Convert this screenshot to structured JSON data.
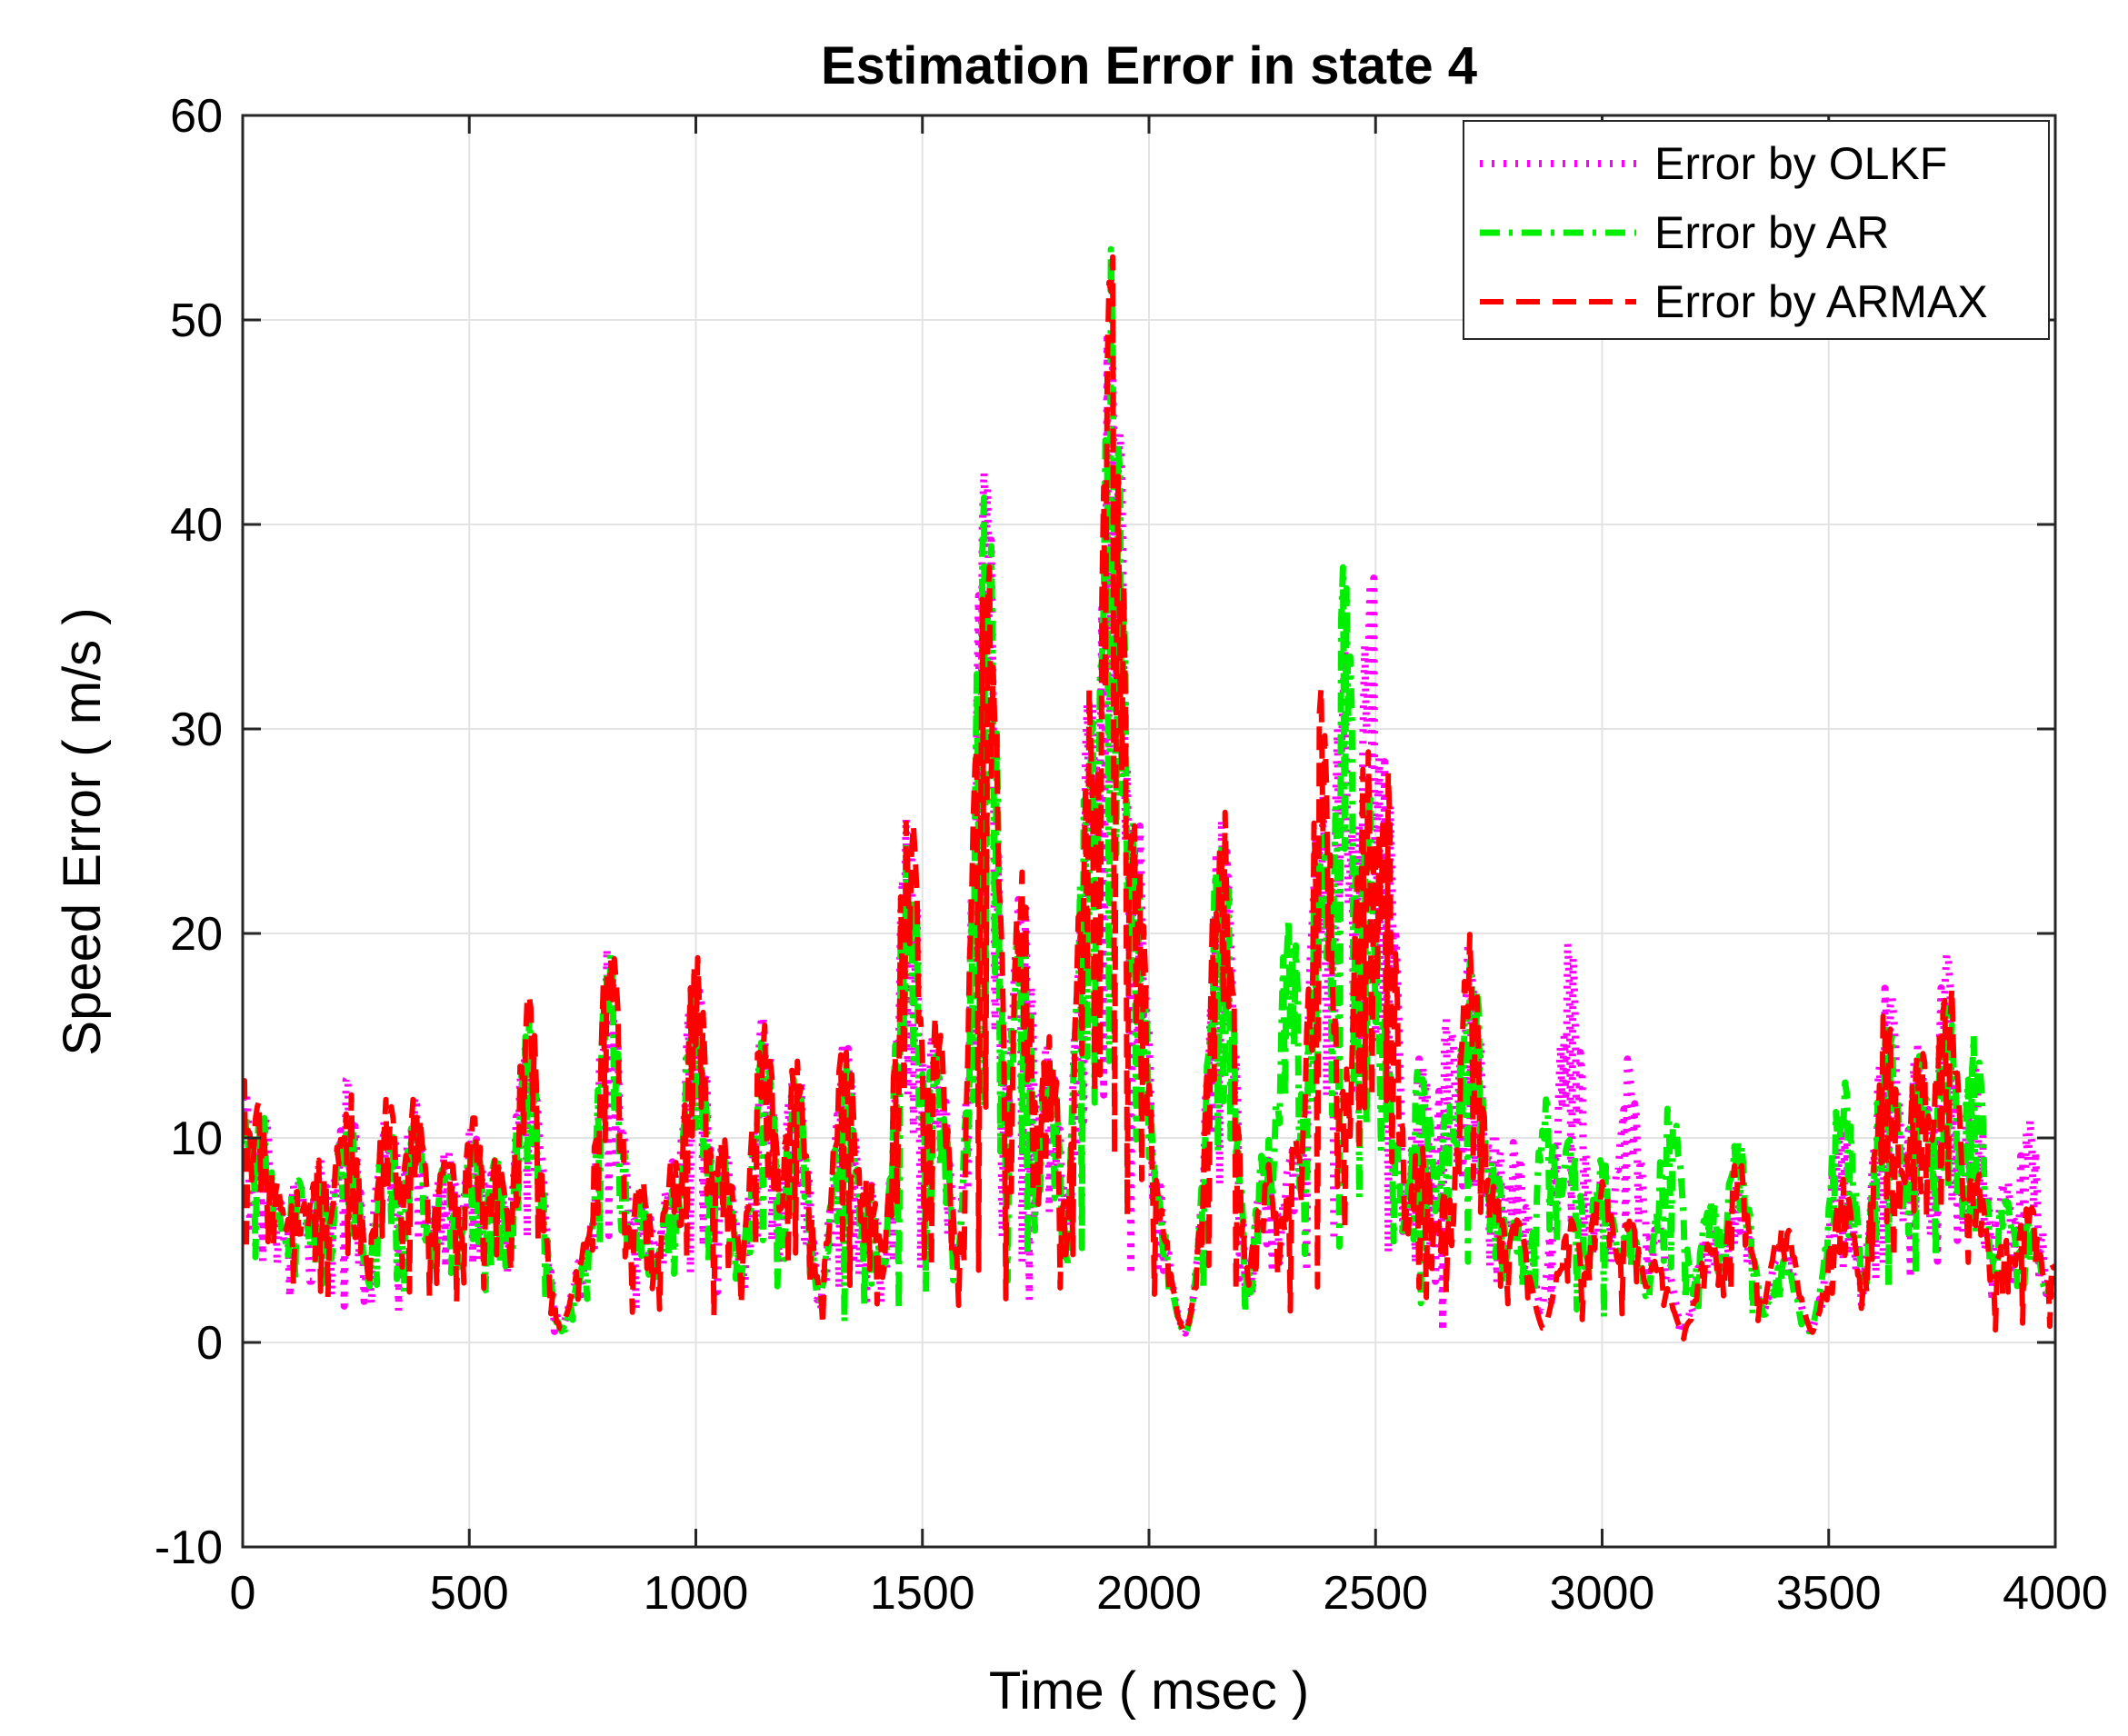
{
  "chart_data": {
    "type": "line",
    "title": "Estimation Error in state 4",
    "xlabel": "Time ( msec )",
    "ylabel": "Speed Error ( m/s )",
    "xlim": [
      0,
      4000
    ],
    "ylim": [
      -10,
      60
    ],
    "xticks": [
      0,
      500,
      1000,
      1500,
      2000,
      2500,
      3000,
      3500,
      4000
    ],
    "yticks": [
      -10,
      0,
      10,
      20,
      30,
      40,
      50,
      60
    ],
    "grid": true,
    "legend_position": "top-right",
    "series": [
      {
        "name": "Error by OLKF",
        "color": "#ff00ff",
        "line_style": "dotted",
        "peaks": [
          [
            0,
            13
          ],
          [
            40,
            12
          ],
          [
            70,
            8
          ],
          [
            120,
            8
          ],
          [
            170,
            9
          ],
          [
            230,
            13
          ],
          [
            320,
            12
          ],
          [
            380,
            12
          ],
          [
            450,
            10
          ],
          [
            510,
            11
          ],
          [
            560,
            9
          ],
          [
            630,
            17
          ],
          [
            760,
            5
          ],
          [
            810,
            20
          ],
          [
            880,
            8
          ],
          [
            950,
            9
          ],
          [
            1000,
            19
          ],
          [
            1060,
            10
          ],
          [
            1150,
            16
          ],
          [
            1220,
            14
          ],
          [
            1330,
            15
          ],
          [
            1380,
            8
          ],
          [
            1470,
            27
          ],
          [
            1530,
            16
          ],
          [
            1640,
            43
          ],
          [
            1720,
            23
          ],
          [
            1780,
            15
          ],
          [
            1870,
            32
          ],
          [
            1920,
            55
          ],
          [
            1970,
            27
          ],
          [
            2010,
            9
          ],
          [
            2160,
            27
          ],
          [
            2260,
            9
          ],
          [
            2320,
            10
          ],
          [
            2380,
            28
          ],
          [
            2430,
            34
          ],
          [
            2490,
            40
          ],
          [
            2520,
            30
          ],
          [
            2600,
            14
          ],
          [
            2660,
            16
          ],
          [
            2710,
            20
          ],
          [
            2760,
            11
          ],
          [
            2810,
            10
          ],
          [
            2930,
            20
          ],
          [
            3000,
            8
          ],
          [
            3060,
            14
          ],
          [
            3120,
            6
          ],
          [
            3240,
            6
          ],
          [
            3300,
            8
          ],
          [
            3400,
            5
          ],
          [
            3530,
            11
          ],
          [
            3630,
            18
          ],
          [
            3700,
            15
          ],
          [
            3760,
            19
          ],
          [
            3820,
            14
          ],
          [
            3890,
            8
          ],
          [
            3940,
            11
          ],
          [
            4000,
            3
          ]
        ]
      },
      {
        "name": "Error by AR",
        "color": "#00ee00",
        "line_style": "dashdot",
        "peaks": [
          [
            0,
            12
          ],
          [
            40,
            12
          ],
          [
            70,
            7
          ],
          [
            120,
            8
          ],
          [
            170,
            8
          ],
          [
            230,
            12
          ],
          [
            320,
            11
          ],
          [
            380,
            11
          ],
          [
            450,
            9
          ],
          [
            510,
            10
          ],
          [
            560,
            9
          ],
          [
            630,
            16
          ],
          [
            760,
            4
          ],
          [
            810,
            19
          ],
          [
            880,
            7
          ],
          [
            950,
            8
          ],
          [
            1000,
            18
          ],
          [
            1060,
            9
          ],
          [
            1150,
            15
          ],
          [
            1220,
            13
          ],
          [
            1330,
            14
          ],
          [
            1380,
            7
          ],
          [
            1470,
            26
          ],
          [
            1530,
            15
          ],
          [
            1640,
            43
          ],
          [
            1720,
            22
          ],
          [
            1780,
            14
          ],
          [
            1870,
            31
          ],
          [
            1920,
            54
          ],
          [
            1970,
            26
          ],
          [
            2010,
            8
          ],
          [
            2160,
            26
          ],
          [
            2260,
            10
          ],
          [
            2310,
            22
          ],
          [
            2380,
            26
          ],
          [
            2430,
            38
          ],
          [
            2480,
            28
          ],
          [
            2520,
            16
          ],
          [
            2600,
            14
          ],
          [
            2660,
            12
          ],
          [
            2710,
            20
          ],
          [
            2760,
            9
          ],
          [
            2810,
            6
          ],
          [
            2880,
            12
          ],
          [
            2930,
            10
          ],
          [
            3000,
            9
          ],
          [
            3060,
            6
          ],
          [
            3150,
            12
          ],
          [
            3240,
            7
          ],
          [
            3300,
            10
          ],
          [
            3400,
            4
          ],
          [
            3530,
            13
          ],
          [
            3630,
            16
          ],
          [
            3700,
            14
          ],
          [
            3760,
            17
          ],
          [
            3820,
            15
          ],
          [
            3890,
            7
          ],
          [
            3940,
            6
          ],
          [
            4000,
            3
          ]
        ]
      },
      {
        "name": "Error by ARMAX",
        "color": "#ff0000",
        "line_style": "dashed",
        "peaks": [
          [
            0,
            13
          ],
          [
            40,
            12
          ],
          [
            70,
            8
          ],
          [
            120,
            8
          ],
          [
            170,
            9
          ],
          [
            230,
            13
          ],
          [
            320,
            12
          ],
          [
            380,
            12
          ],
          [
            450,
            10
          ],
          [
            510,
            11
          ],
          [
            560,
            9
          ],
          [
            630,
            17
          ],
          [
            760,
            5
          ],
          [
            810,
            20
          ],
          [
            880,
            8
          ],
          [
            950,
            9
          ],
          [
            1000,
            19
          ],
          [
            1060,
            10
          ],
          [
            1150,
            16
          ],
          [
            1220,
            14
          ],
          [
            1330,
            15
          ],
          [
            1380,
            8
          ],
          [
            1470,
            27
          ],
          [
            1530,
            16
          ],
          [
            1640,
            43
          ],
          [
            1720,
            23
          ],
          [
            1780,
            15
          ],
          [
            1870,
            32
          ],
          [
            1920,
            54
          ],
          [
            1970,
            27
          ],
          [
            2010,
            9
          ],
          [
            2160,
            27
          ],
          [
            2260,
            9
          ],
          [
            2320,
            10
          ],
          [
            2380,
            32
          ],
          [
            2430,
            14
          ],
          [
            2480,
            30
          ],
          [
            2520,
            29
          ],
          [
            2600,
            10
          ],
          [
            2660,
            8
          ],
          [
            2710,
            20
          ],
          [
            2760,
            8
          ],
          [
            2810,
            6
          ],
          [
            2930,
            6
          ],
          [
            3000,
            8
          ],
          [
            3060,
            6
          ],
          [
            3120,
            4
          ],
          [
            3240,
            5
          ],
          [
            3300,
            9
          ],
          [
            3400,
            6
          ],
          [
            3530,
            8
          ],
          [
            3630,
            17
          ],
          [
            3700,
            15
          ],
          [
            3760,
            19
          ],
          [
            3820,
            9
          ],
          [
            3890,
            5
          ],
          [
            3940,
            7
          ],
          [
            4000,
            4
          ]
        ]
      }
    ]
  }
}
